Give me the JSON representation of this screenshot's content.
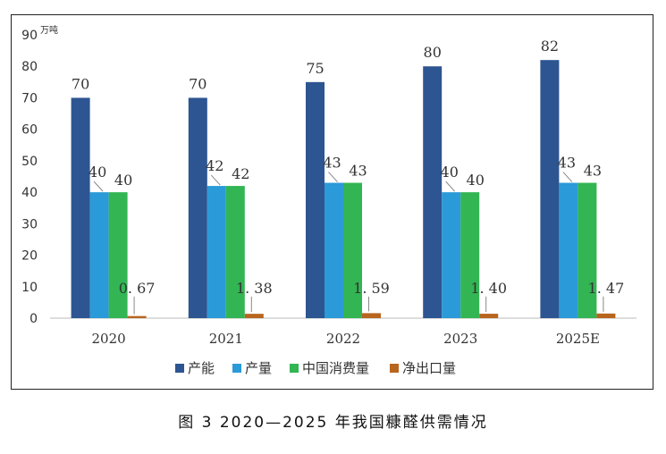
{
  "caption": "图 3 2020—2025 年我国糠醛供需情况",
  "chart_data": {
    "type": "bar",
    "unit": "万吨",
    "categories": [
      "2020",
      "2021",
      "2022",
      "2023",
      "2025E"
    ],
    "ylim": [
      0,
      90
    ],
    "yticks": [
      0,
      10,
      20,
      30,
      40,
      50,
      60,
      70,
      80,
      90
    ],
    "grid": false,
    "legend_position": "bottom",
    "series": [
      {
        "name": "产能",
        "color": "#2d5591",
        "values": [
          70,
          70,
          75,
          80,
          82
        ],
        "labels": [
          "70",
          "70",
          "75",
          "80",
          "82"
        ]
      },
      {
        "name": "产量",
        "color": "#2b9ad8",
        "values": [
          40,
          42,
          43,
          40,
          43
        ],
        "labels": [
          "40",
          "42",
          "43",
          "40",
          "43"
        ]
      },
      {
        "name": "中国消费量",
        "color": "#33b553",
        "values": [
          40,
          42,
          43,
          40,
          43
        ],
        "labels": [
          "40",
          "42",
          "43",
          "40",
          "43"
        ]
      },
      {
        "name": "净出口量",
        "color": "#b8651f",
        "values": [
          0.67,
          1.38,
          1.59,
          1.4,
          1.47
        ],
        "labels": [
          "0. 67",
          "1. 38",
          "1. 59",
          "1. 40",
          "1. 47"
        ]
      }
    ]
  }
}
